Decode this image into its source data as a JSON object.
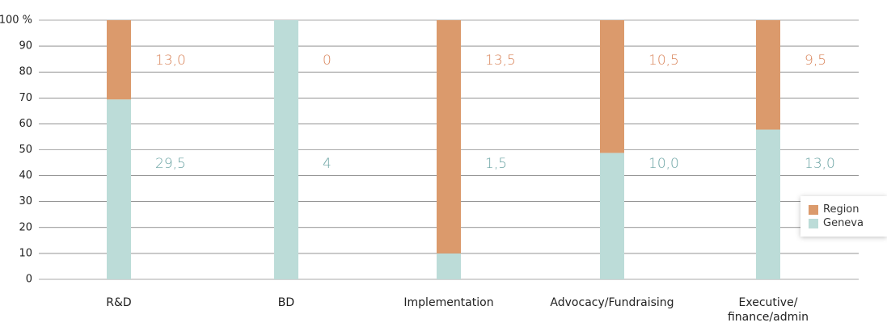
{
  "chart_data": {
    "type": "stacked_percent",
    "categories": [
      "R&D",
      "BD",
      "Implementation",
      "Advocacy/Fundraising",
      "Executive/\nfinance/admin"
    ],
    "series": [
      {
        "name": "Geneva",
        "color": "#bcdcd8",
        "label_color": "#6aa3a3",
        "values": [
          29.5,
          4,
          1.5,
          10.0,
          13.0
        ],
        "value_labels": [
          "29,5",
          "4",
          "1,5",
          "10,0",
          "13,0"
        ]
      },
      {
        "name": "Region",
        "color": "#db9a6c",
        "label_color": "#d9845a",
        "values": [
          13.0,
          0,
          13.5,
          10.5,
          9.5
        ],
        "value_labels": [
          "13,0",
          "0",
          "13,5",
          "10,5",
          "9,5"
        ]
      }
    ],
    "ylim": [
      0,
      100
    ],
    "yticks": [
      0,
      10,
      20,
      30,
      40,
      50,
      60,
      70,
      80,
      90,
      {
        "value": 100,
        "label": "100 %"
      }
    ],
    "grid": true,
    "legend": "right"
  }
}
